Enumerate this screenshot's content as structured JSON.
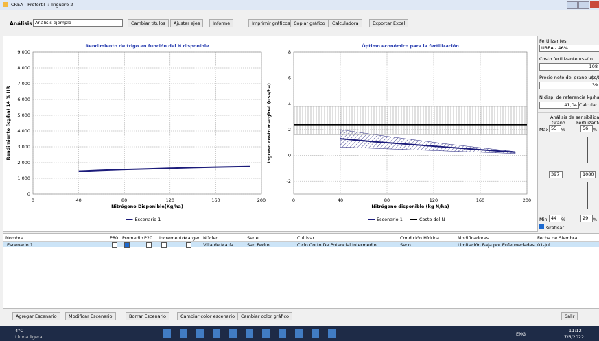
{
  "window": {
    "title": "CREA - Profertil :: Triguero 2"
  },
  "toolbar": {
    "label": "Análisis",
    "analysis": "Análisis ejemplo",
    "buttons": [
      "Cambiar títulos",
      "Ajustar ejes",
      "Informe",
      "Imprimir gráficos",
      "Copiar gráfico",
      "Calculadora",
      "Exportar Excel"
    ]
  },
  "chart_data": [
    {
      "type": "line",
      "title": "Rendimiento de trigo en función del N disponible",
      "x_label": "Nitrógeno Disponible(Kg/ha)",
      "y_label": "Rendimiento (kg/ha) 14 % HR",
      "xlim": [
        0,
        200
      ],
      "xticks": [
        0,
        40,
        80,
        120,
        160,
        200
      ],
      "ylim": [
        0,
        9000
      ],
      "yticks": [
        0,
        {
          "value": 1000,
          "label": "1.000"
        },
        {
          "value": 2000,
          "label": "2.000"
        },
        {
          "value": 3000,
          "label": "3.000"
        },
        {
          "value": 4000,
          "label": "4.000"
        },
        {
          "value": 5000,
          "label": "5.000"
        },
        {
          "value": 6000,
          "label": "6.000"
        },
        {
          "value": 7000,
          "label": "7.000"
        },
        {
          "value": 8000,
          "label": "8.000"
        },
        {
          "value": 9000,
          "label": "9.000"
        }
      ],
      "grid": true,
      "series": [
        {
          "name": "Escenario 1",
          "color": "#1b1b7a",
          "x": [
            40,
            60,
            80,
            100,
            120,
            140,
            160,
            180,
            190
          ],
          "values": [
            1450,
            1510,
            1560,
            1600,
            1640,
            1680,
            1710,
            1740,
            1750
          ]
        }
      ]
    },
    {
      "type": "line",
      "title": "Óptimo económico para la fertilización",
      "x_label": "Nitrógeno disponible (kg N/ha)",
      "y_label": "Ingreso costo marginal (u$s/ha)",
      "xlim": [
        0,
        200
      ],
      "xticks": [
        0,
        40,
        80,
        120,
        160,
        200
      ],
      "ylim": [
        -3,
        8
      ],
      "yticks": [
        -2,
        0,
        2,
        4,
        6,
        8
      ],
      "grid": true,
      "series": [
        {
          "name": "Escenario 1",
          "color": "#1b1b7a",
          "hatch": "diagonal",
          "x": [
            40,
            70,
            100,
            130,
            160,
            190
          ],
          "values": [
            1.3,
            1.05,
            0.85,
            0.65,
            0.45,
            0.25
          ],
          "band_upper": [
            2.0,
            1.6,
            1.25,
            0.9,
            0.6,
            0.3
          ],
          "band_lower": [
            0.65,
            0.55,
            0.45,
            0.35,
            0.25,
            0.15
          ]
        },
        {
          "name": "Costo del N",
          "color": "#000000",
          "hatch": "vertical",
          "x": [
            0,
            200
          ],
          "values": [
            2.39,
            2.39
          ],
          "band_upper": [
            3.8,
            3.8
          ],
          "band_lower": [
            1.6,
            1.6
          ]
        }
      ]
    }
  ],
  "panel": {
    "fert_label": "Fertilizantes",
    "fert": "UREA - 46%",
    "cost_label": "Costo fertilizante u$s/tn",
    "cost": "108",
    "price_label": "Precio neto del grano u$s/tn",
    "price": "39",
    "ref_label": "N disp. de referencia kg/ha",
    "ref": "41,04",
    "calc": "Calcular",
    "sens_title": "Análisis de sensibilidad",
    "grain": "Grano",
    "fertilizer": "Fertilizante",
    "max": "Max",
    "grain_max": "55",
    "pct": "%",
    "fert_max": "56",
    "grain_val": "397",
    "fert_val": "1080",
    "min": "Min",
    "grain_min": "44",
    "fert_min": "29",
    "plot": "Graficar"
  },
  "table": {
    "headers": [
      "Nombre",
      "P80",
      "Promedio",
      "P20",
      "Incremento",
      "Margen",
      "Núcleo",
      "Serie",
      "Cultivar",
      "Condición Hídrica",
      "Modificadores",
      "Fecha de Siembra"
    ],
    "rows": [
      {
        "name": "Escenario 1",
        "checks": [
          false,
          true,
          false,
          false,
          false
        ],
        "cells": [
          "Villa de María",
          "San Pedro",
          "Ciclo Corto De Potencial Intermedio",
          "Seco",
          "Limitación Baja por Enfermedades",
          "01-Jul"
        ]
      }
    ]
  },
  "buttons": [
    "Agregar Escenario",
    "Modificar Escenario",
    "Borrar Escenario",
    "Cambiar color escenario",
    "Cambiar color gráfico",
    "Salir"
  ],
  "taskbar": {
    "temp": "4°C",
    "weather": "Lluvia ligera",
    "lang": "ENG",
    "time": "11:12",
    "date": "7/6/2022"
  }
}
